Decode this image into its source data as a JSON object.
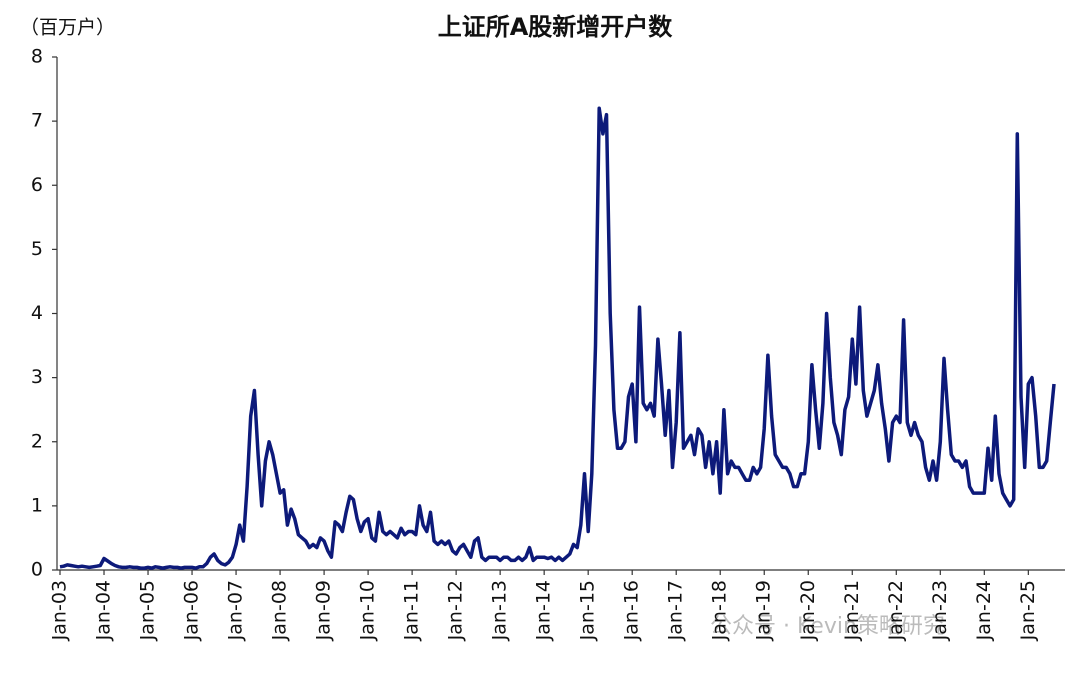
{
  "chart_data": {
    "type": "line",
    "title": "上证所A股新增开户数",
    "y_label": "（百万户）",
    "annotation": "公众号 · Kevin策略研究",
    "categories": [
      "Jan-03",
      null,
      null,
      null,
      null,
      null,
      null,
      null,
      null,
      null,
      null,
      null,
      "Jan-04",
      null,
      null,
      null,
      null,
      null,
      null,
      null,
      null,
      null,
      null,
      null,
      "Jan-05",
      null,
      null,
      null,
      null,
      null,
      null,
      null,
      null,
      null,
      null,
      null,
      "Jan-06",
      null,
      null,
      null,
      null,
      null,
      null,
      null,
      null,
      null,
      null,
      null,
      "Jan-07",
      null,
      null,
      null,
      null,
      null,
      null,
      null,
      null,
      null,
      null,
      null,
      "Jan-08",
      null,
      null,
      null,
      null,
      null,
      null,
      null,
      null,
      null,
      null,
      null,
      "Jan-09",
      null,
      null,
      null,
      null,
      null,
      null,
      null,
      null,
      null,
      null,
      null,
      "Jan-10",
      null,
      null,
      null,
      null,
      null,
      null,
      null,
      null,
      null,
      null,
      null,
      "Jan-11",
      null,
      null,
      null,
      null,
      null,
      null,
      null,
      null,
      null,
      null,
      null,
      "Jan-12",
      null,
      null,
      null,
      null,
      null,
      null,
      null,
      null,
      null,
      null,
      null,
      "Jan-13",
      null,
      null,
      null,
      null,
      null,
      null,
      null,
      null,
      null,
      null,
      null,
      "Jan-14",
      null,
      null,
      null,
      null,
      null,
      null,
      null,
      null,
      null,
      null,
      null,
      "Jan-15",
      null,
      null,
      null,
      null,
      null,
      null,
      null,
      null,
      null,
      null,
      null,
      "Jan-16",
      null,
      null,
      null,
      null,
      null,
      null,
      null,
      null,
      null,
      null,
      null,
      "Jan-17",
      null,
      null,
      null,
      null,
      null,
      null,
      null,
      null,
      null,
      null,
      null,
      "Jan-18",
      null,
      null,
      null,
      null,
      null,
      null,
      null,
      null,
      null,
      null,
      null,
      "Jan-19",
      null,
      null,
      null,
      null,
      null,
      null,
      null,
      null,
      null,
      null,
      null,
      "Jan-20",
      null,
      null,
      null,
      null,
      null,
      null,
      null,
      null,
      null,
      null,
      null,
      "Jan-21",
      null,
      null,
      null,
      null,
      null,
      null,
      null,
      null,
      null,
      null,
      null,
      "Jan-22",
      null,
      null,
      null,
      null,
      null,
      null,
      null,
      null,
      null,
      null,
      null,
      "Jan-23",
      null,
      null,
      null,
      null,
      null,
      null,
      null,
      null,
      null,
      null,
      null,
      "Jan-24",
      null,
      null,
      null,
      null,
      null,
      null,
      null,
      null,
      null,
      null,
      null,
      "Jan-25",
      null,
      null,
      null,
      null,
      null,
      null,
      null
    ],
    "series": [
      {
        "name": "上证所A股新增开户数",
        "color": "#0d1a7a",
        "values": [
          0.05,
          0.06,
          0.08,
          0.07,
          0.06,
          0.05,
          0.06,
          0.05,
          0.04,
          0.05,
          0.06,
          0.07,
          0.18,
          0.14,
          0.1,
          0.07,
          0.05,
          0.04,
          0.04,
          0.05,
          0.04,
          0.04,
          0.03,
          0.03,
          0.04,
          0.03,
          0.05,
          0.04,
          0.03,
          0.04,
          0.05,
          0.04,
          0.04,
          0.03,
          0.04,
          0.04,
          0.04,
          0.03,
          0.05,
          0.05,
          0.1,
          0.2,
          0.25,
          0.15,
          0.1,
          0.08,
          0.12,
          0.2,
          0.4,
          0.7,
          0.45,
          1.3,
          2.4,
          2.8,
          1.8,
          1.0,
          1.7,
          2.0,
          1.8,
          1.5,
          1.2,
          1.25,
          0.7,
          0.95,
          0.8,
          0.55,
          0.5,
          0.45,
          0.35,
          0.4,
          0.35,
          0.5,
          0.45,
          0.3,
          0.2,
          0.75,
          0.7,
          0.6,
          0.9,
          1.15,
          1.1,
          0.8,
          0.6,
          0.75,
          0.8,
          0.5,
          0.45,
          0.9,
          0.6,
          0.55,
          0.6,
          0.55,
          0.5,
          0.65,
          0.55,
          0.6,
          0.6,
          0.55,
          1.0,
          0.7,
          0.6,
          0.9,
          0.45,
          0.4,
          0.45,
          0.4,
          0.45,
          0.3,
          0.25,
          0.35,
          0.4,
          0.3,
          0.2,
          0.45,
          0.5,
          0.2,
          0.15,
          0.2,
          0.2,
          0.2,
          0.15,
          0.2,
          0.2,
          0.15,
          0.15,
          0.2,
          0.15,
          0.2,
          0.35,
          0.15,
          0.2,
          0.2,
          0.2,
          0.18,
          0.2,
          0.15,
          0.2,
          0.15,
          0.2,
          0.25,
          0.4,
          0.35,
          0.7,
          1.5,
          0.6,
          1.5,
          3.5,
          7.2,
          6.8,
          7.1,
          4.0,
          2.5,
          1.9,
          1.9,
          2.0,
          2.7,
          2.9,
          2.0,
          4.1,
          2.6,
          2.5,
          2.6,
          2.4,
          3.6,
          2.9,
          2.1,
          2.8,
          1.6,
          2.3,
          3.7,
          1.9,
          2.0,
          2.1,
          1.8,
          2.2,
          2.1,
          1.6,
          2.0,
          1.5,
          2.0,
          1.2,
          2.5,
          1.5,
          1.7,
          1.6,
          1.6,
          1.5,
          1.4,
          1.4,
          1.6,
          1.5,
          1.6,
          2.2,
          3.35,
          2.4,
          1.8,
          1.7,
          1.6,
          1.6,
          1.5,
          1.3,
          1.3,
          1.5,
          1.5,
          2.0,
          3.2,
          2.5,
          1.9,
          2.6,
          4.0,
          3.0,
          2.3,
          2.1,
          1.8,
          2.5,
          2.7,
          3.6,
          2.9,
          4.1,
          2.8,
          2.4,
          2.6,
          2.8,
          3.2,
          2.6,
          2.2,
          1.7,
          2.3,
          2.4,
          2.3,
          3.9,
          2.3,
          2.1,
          2.3,
          2.1,
          2.0,
          1.6,
          1.4,
          1.7,
          1.4,
          2.0,
          3.3,
          2.5,
          1.8,
          1.7,
          1.7,
          1.6,
          1.7,
          1.3,
          1.2,
          1.2,
          1.2,
          1.2,
          1.9,
          1.4,
          2.4,
          1.5,
          1.2,
          1.1,
          1.0,
          1.1,
          6.8,
          2.7,
          1.6,
          2.9,
          3.0,
          2.4,
          1.6,
          1.6,
          1.7,
          2.3,
          2.9
        ]
      }
    ],
    "ylim": [
      0,
      8
    ],
    "yticks": [
      0,
      1,
      2,
      3,
      4,
      5,
      6,
      7,
      8
    ]
  }
}
